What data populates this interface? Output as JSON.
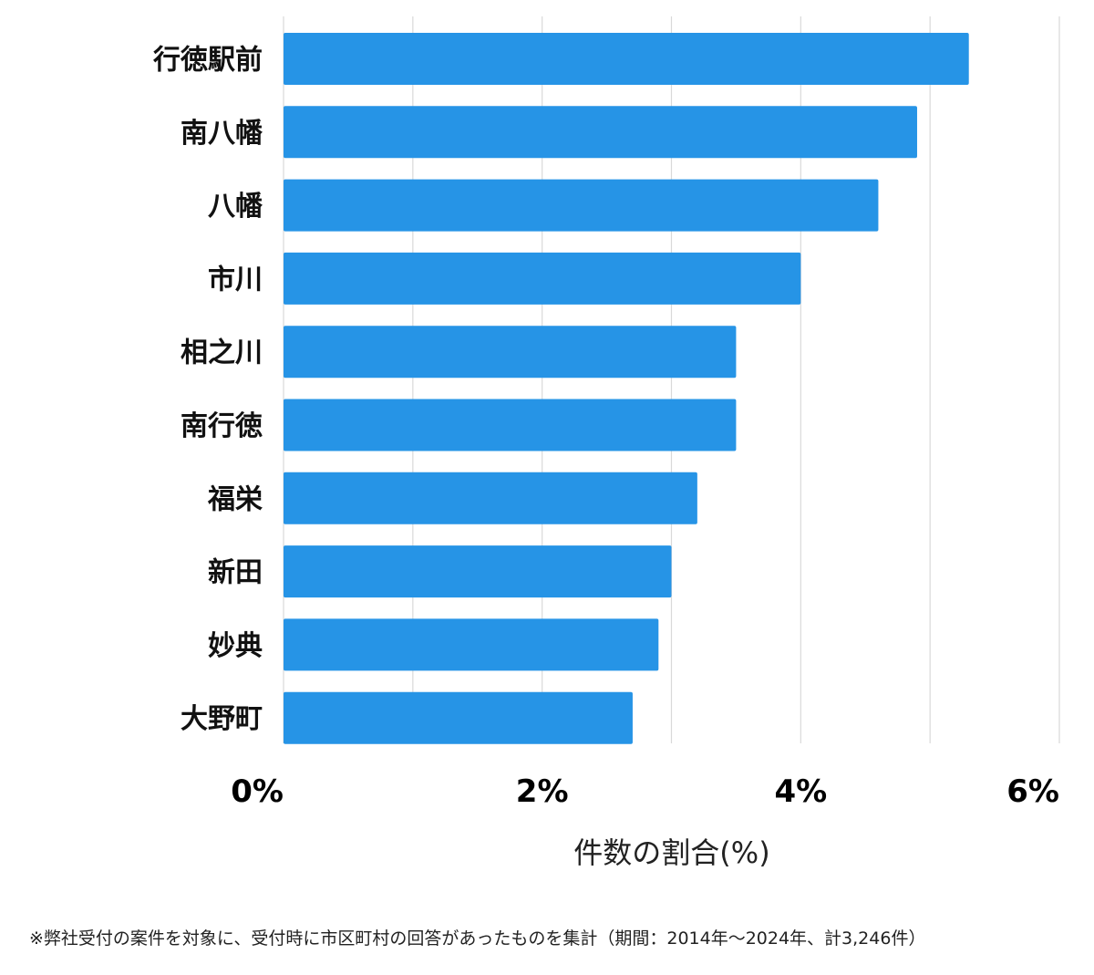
{
  "chart_data": {
    "type": "bar",
    "orientation": "horizontal",
    "categories": [
      "行徳駅前",
      "南八幡",
      "八幡",
      "市川",
      "相之川",
      "南行徳",
      "福栄",
      "新田",
      "妙典",
      "大野町"
    ],
    "values": [
      5.3,
      4.9,
      4.6,
      4.0,
      3.5,
      3.5,
      3.2,
      3.0,
      2.9,
      2.7
    ],
    "xlim": [
      0,
      6
    ],
    "xticks": [
      0,
      2,
      4,
      6
    ],
    "xtick_labels": [
      "0%",
      "2%",
      "4%",
      "6%"
    ],
    "xlabel": "件数の割合(%)",
    "grid": "vertical",
    "bar_color": "#2694e6",
    "grid_color": "#d9d9d9"
  },
  "footnote": "※弊社受付の案件を対象に、受付時に市区町村の回答があったものを集計（期間：2014年～2024年、計3,246件）"
}
